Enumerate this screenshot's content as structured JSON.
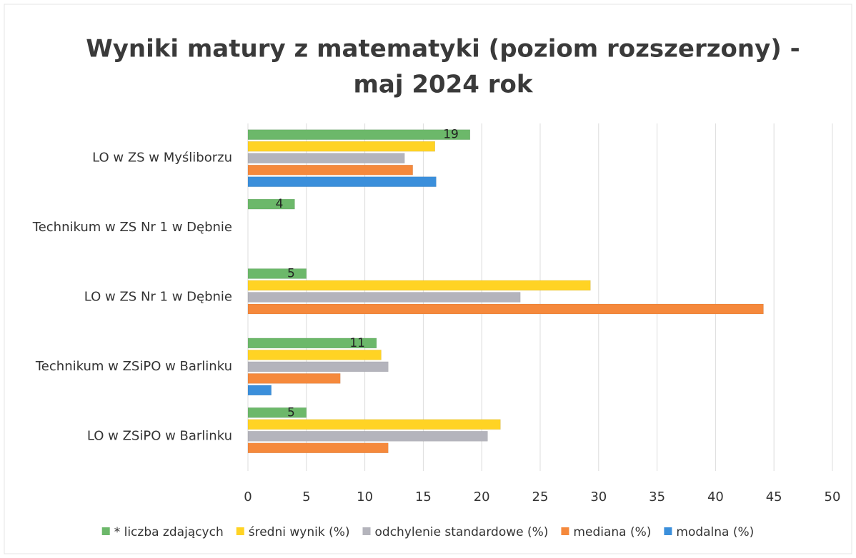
{
  "chart_data": {
    "type": "bar",
    "orientation": "horizontal",
    "title": "Wyniki matury z matematyki (poziom rozszerzony) -",
    "subtitle": "maj 2024 rok",
    "categories": [
      "LO w ZS w Myśliborzu",
      "Technikum w ZS Nr 1 w Dębnie",
      "LO w ZS Nr 1 w Dębnie",
      "Technikum w ZSiPO w Barlinku",
      "LO w ZSiPO w Barlinku"
    ],
    "series": [
      {
        "name": "* liczba zdających",
        "color": "#6cb86a",
        "values": [
          19,
          4,
          5,
          11,
          5
        ]
      },
      {
        "name": "średni wynik (%)",
        "color": "#ffd324",
        "values": [
          16,
          null,
          29.3,
          11.4,
          21.6
        ]
      },
      {
        "name": "odchylenie standardowe (%)",
        "color": "#b4b4bc",
        "values": [
          13.4,
          null,
          23.3,
          12,
          20.5
        ]
      },
      {
        "name": "mediana (%)",
        "color": "#f5893c",
        "values": [
          14.1,
          null,
          44.1,
          7.9,
          12
        ]
      },
      {
        "name": "modalna (%)",
        "color": "#3b8fdb",
        "values": [
          16.1,
          null,
          null,
          2,
          null
        ]
      }
    ],
    "xlim": [
      0,
      50
    ],
    "xticks": [
      0,
      5,
      10,
      15,
      20,
      25,
      30,
      35,
      40,
      45,
      50
    ],
    "grid": true,
    "legend": "bottom"
  }
}
